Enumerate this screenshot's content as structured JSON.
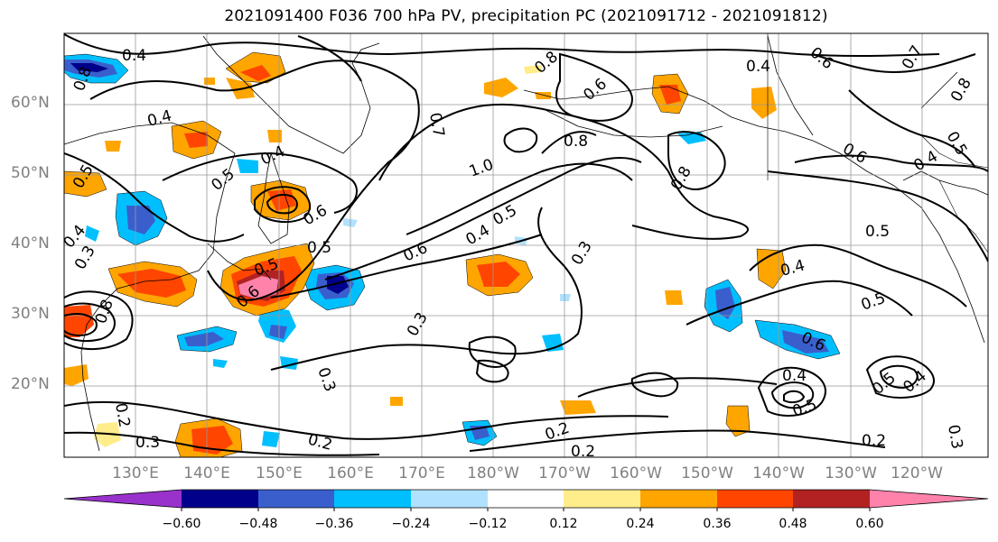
{
  "title": "2021091400 F036 700 hPa PV, precipitation PC (2021091712 - 2021091812)",
  "lat_labels": [
    "60°N",
    "50°N",
    "40°N",
    "30°N",
    "20°N"
  ],
  "lon_labels": [
    "130°E",
    "140°E",
    "150°E",
    "160°E",
    "170°E",
    "180°W",
    "170°W",
    "160°W",
    "150°W",
    "140°W",
    "130°W",
    "120°W"
  ],
  "colorbar": {
    "colors": [
      "#9932CC",
      "#00008B",
      "#3A5FCD",
      "#00BFFF",
      "#B0E2FF",
      "#FFFFFF",
      "#FFEC8B",
      "#FFA500",
      "#FF4500",
      "#B22222",
      "#FF82AB"
    ],
    "tick_labels": [
      "−0.60",
      "−0.48",
      "−0.36",
      "−0.24",
      "−0.12",
      "0.12",
      "0.24",
      "0.36",
      "0.48",
      "0.60"
    ]
  },
  "contour_labels": [
    "0.4",
    "0.8",
    "0.4",
    "0.5",
    "0.4",
    "0.6",
    "0.5",
    "0.5",
    "0.6",
    "0.5",
    "0.3",
    "0.3",
    "0.7",
    "1.0",
    "0.8",
    "0.6",
    "0.4",
    "0.5",
    "0.8",
    "0.3",
    "0.6",
    "0.4",
    "0.4",
    "0.6",
    "0.5",
    "0.4",
    "0.6",
    "0.7",
    "0.8",
    "0.5",
    "0.4",
    "0.5",
    "0.5",
    "0.4",
    "0.6",
    "0.4",
    "0.5",
    "0.2",
    "0.2",
    "0.3",
    "0.2",
    "0.3",
    "0.2",
    "0.2",
    "0.3",
    "0.8",
    "0.8"
  ],
  "legend_colors": {
    "strong_negative": "#00008B",
    "strong_positive": "#FF82AB"
  }
}
